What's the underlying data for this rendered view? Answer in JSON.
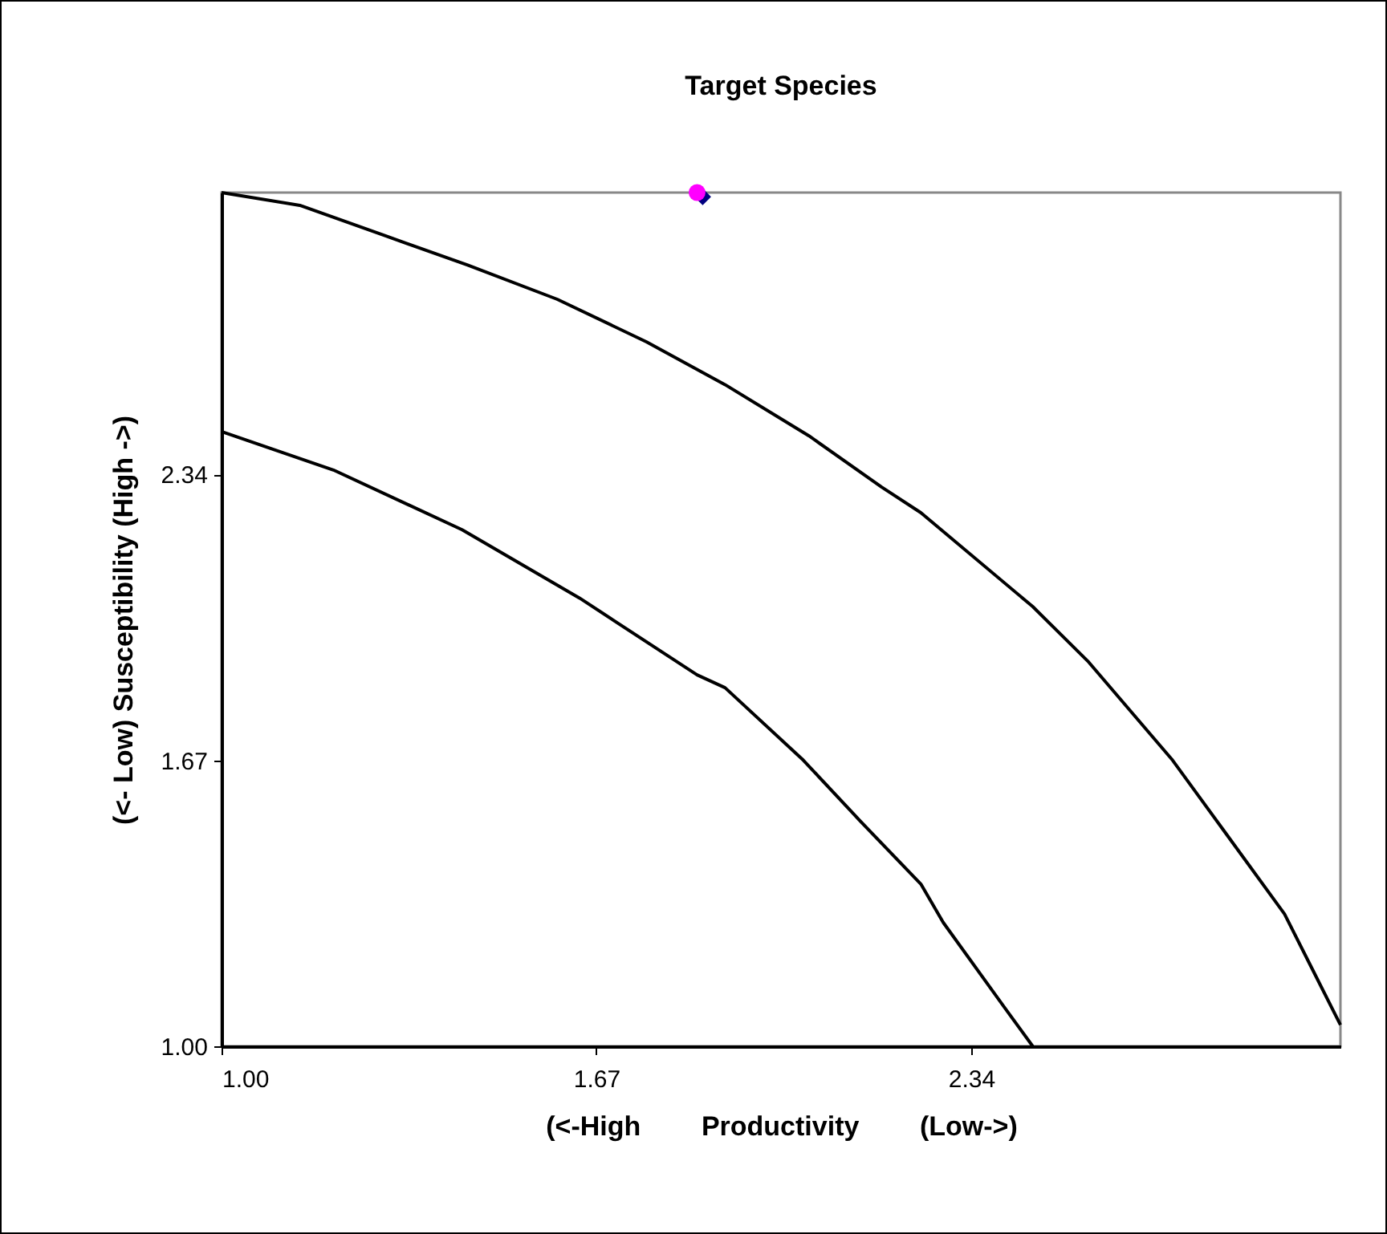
{
  "chart_data": {
    "type": "line",
    "title": "Target Species",
    "xlabel": "(<-High        Productivity        (Low->)",
    "ylabel": "(<- Low) Susceptibility (High ->)",
    "xlim": [
      1,
      3
    ],
    "ylim": [
      1,
      3
    ],
    "xticks": [
      {
        "value": 1,
        "label": "1.00"
      },
      1.67,
      2.34
    ],
    "yticks": [
      {
        "value": 1,
        "label": "1.00"
      },
      1.67,
      2.34
    ],
    "grid": false,
    "series": [
      {
        "color": "#000000",
        "x": [
          1.0,
          1.14,
          1.29,
          1.44,
          1.6,
          1.76,
          1.9,
          2.05,
          2.18,
          2.25,
          2.45,
          2.55,
          2.7,
          2.9,
          2.95,
          3.0
        ],
        "values": [
          3.0,
          2.97,
          2.9,
          2.83,
          2.75,
          2.65,
          2.55,
          2.43,
          2.31,
          2.25,
          2.03,
          1.9,
          1.67,
          1.31,
          1.18,
          1.05
        ]
      },
      {
        "color": "#000000",
        "x": [
          1.0,
          1.2,
          1.43,
          1.64,
          1.85,
          1.9,
          2.04,
          2.14,
          2.25,
          2.29,
          2.4,
          2.45
        ],
        "values": [
          2.44,
          2.35,
          2.21,
          2.05,
          1.87,
          1.84,
          1.67,
          1.53,
          1.38,
          1.29,
          1.09,
          1.0
        ]
      },
      {
        "type": "scatter",
        "marker": "diamond",
        "color": "#000080",
        "x": [
          1.86
        ],
        "values": [
          2.99
        ]
      },
      {
        "type": "scatter",
        "marker": "circle",
        "color": "#ff00ff",
        "x": [
          1.85
        ],
        "values": [
          3.0
        ]
      }
    ]
  }
}
